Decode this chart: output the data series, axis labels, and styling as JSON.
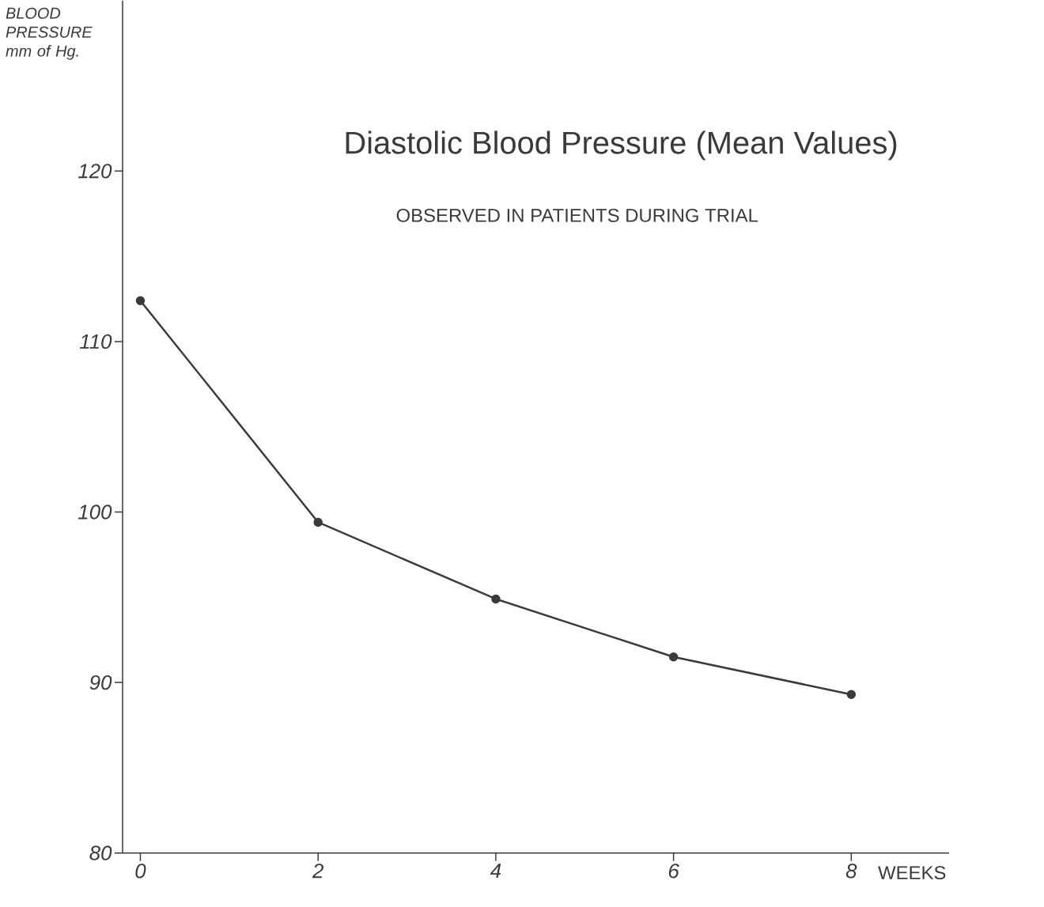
{
  "chart_data": {
    "type": "line",
    "title": "Diastolic Blood Pressure (Mean Values)",
    "subtitle": "OBSERVED IN PATIENTS DURING TRIAL",
    "xlabel": "WEEKS",
    "ylabel": "BLOOD PRESSURE mm of Hg.",
    "x": [
      0,
      2,
      4,
      6,
      8
    ],
    "values": [
      112.4,
      99.4,
      94.9,
      91.5,
      89.3
    ],
    "color": "#3a3a3a",
    "marker": "circle",
    "line_style": "solid",
    "xlim": [
      -0.2,
      9.1
    ],
    "ylim": [
      80,
      130
    ],
    "xticks": [
      0,
      2,
      4,
      6,
      8
    ],
    "yticks": [
      80,
      90,
      100,
      110,
      120
    ]
  }
}
